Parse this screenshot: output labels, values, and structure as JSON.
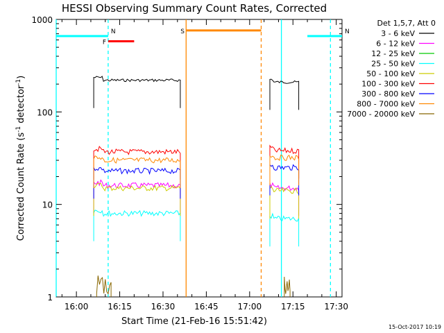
{
  "chart_data": {
    "type": "line",
    "title": "HESSI Observing Summary Count Rates, Corrected",
    "xlabel": "Start Time (21-Feb-16 15:51:42)",
    "ylabel": "Corrected Count Rate (s⁻¹ detector⁻¹)",
    "ylabel_parts": {
      "a": "Corrected Count Rate (s",
      "sup1": "-1",
      "b": " detector",
      "sup2": "-1",
      "c": ")"
    },
    "timestamp": "15-Oct-2017 10:19",
    "x_range": [
      "15:53",
      "17:32"
    ],
    "y_scale": "log",
    "ylim": [
      1,
      1000
    ],
    "x_ticks": [
      "16:00",
      "16:15",
      "16:30",
      "16:45",
      "17:00",
      "17:15",
      "17:30"
    ],
    "y_ticks": [
      "1",
      "10",
      "100",
      "1000"
    ],
    "legend_title": "Det 1,5,7, Att 0",
    "legend_position": "right",
    "series": [
      {
        "name": "3 - 6 keV",
        "color": "#000000",
        "segments": [
          {
            "start": "16:06",
            "end": "16:36",
            "level": 220
          },
          {
            "start": "17:07",
            "end": "17:17",
            "level": 210
          }
        ]
      },
      {
        "name": "6 - 12 keV",
        "color": "#ff00ff",
        "segments": [
          {
            "start": "16:06",
            "end": "16:36",
            "level": 16
          },
          {
            "start": "17:07",
            "end": "17:17",
            "level": 15
          }
        ]
      },
      {
        "name": "12 - 25 keV",
        "color": "#00cc00",
        "segments": []
      },
      {
        "name": "25 - 50 keV",
        "color": "#00ffff",
        "segments": [
          {
            "start": "16:06",
            "end": "16:36",
            "level": 8
          },
          {
            "start": "17:07",
            "end": "17:17",
            "level": 7
          }
        ]
      },
      {
        "name": "50 - 100 keV",
        "color": "#cccc00",
        "segments": [
          {
            "start": "16:06",
            "end": "16:36",
            "level": 15
          },
          {
            "start": "17:07",
            "end": "17:17",
            "level": 14
          }
        ]
      },
      {
        "name": "100 - 300 keV",
        "color": "#ff0000",
        "segments": [
          {
            "start": "16:06",
            "end": "16:36",
            "level": 37
          },
          {
            "start": "17:07",
            "end": "17:17",
            "level": 38
          }
        ]
      },
      {
        "name": "300 - 800 keV",
        "color": "#0000ff",
        "segments": [
          {
            "start": "16:06",
            "end": "16:36",
            "level": 23
          },
          {
            "start": "17:07",
            "end": "17:17",
            "level": 25
          }
        ]
      },
      {
        "name": "800 - 7000 keV",
        "color": "#ff8800",
        "segments": [
          {
            "start": "16:06",
            "end": "16:36",
            "level": 30
          },
          {
            "start": "17:07",
            "end": "17:17",
            "level": 32
          }
        ]
      },
      {
        "name": "7000 - 20000 keV",
        "color": "#886600",
        "segments": [
          {
            "start": "16:07",
            "end": "16:12",
            "level": 1.5
          },
          {
            "start": "17:12",
            "end": "17:14",
            "level": 1.5
          }
        ]
      }
    ],
    "flags": [
      {
        "label": "F",
        "color": "#ff0000",
        "start": "16:11",
        "end": "16:20",
        "level": 580
      },
      {
        "label": "N",
        "color": "#00ffff",
        "start": "15:53",
        "end": "16:11",
        "level": 660
      },
      {
        "label": "N",
        "color": "#00ffff",
        "start": "17:20",
        "end": "17:32",
        "level": 660
      },
      {
        "label": "S",
        "color": "#ff8800",
        "start": "16:38",
        "end": "17:04",
        "level": 760
      }
    ],
    "vertical_markers": [
      {
        "time": "15:53",
        "color": "#00ffff",
        "style": "solid"
      },
      {
        "time": "16:11",
        "color": "#00ffff",
        "style": "dashed"
      },
      {
        "time": "16:38",
        "color": "#ff8800",
        "style": "solid"
      },
      {
        "time": "17:04",
        "color": "#ff8800",
        "style": "dashed"
      },
      {
        "time": "17:11",
        "color": "#00ffff",
        "style": "solid"
      },
      {
        "time": "17:28",
        "color": "#00ffff",
        "style": "dashed"
      }
    ]
  }
}
